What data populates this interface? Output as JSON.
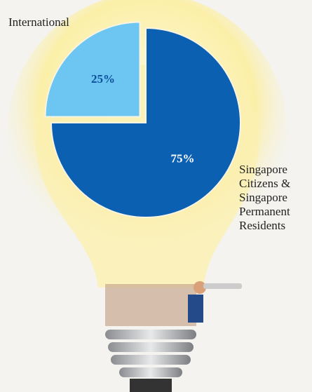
{
  "chart_data": {
    "type": "pie",
    "categories": [
      "International",
      "Singapore Citizens & Singapore Permanent Residents"
    ],
    "values": [
      25,
      75
    ],
    "value_labels": [
      "25%",
      "75%"
    ],
    "colors": [
      "#6cc6f1",
      "#0c60b2"
    ],
    "explode": [
      true,
      false
    ]
  }
}
